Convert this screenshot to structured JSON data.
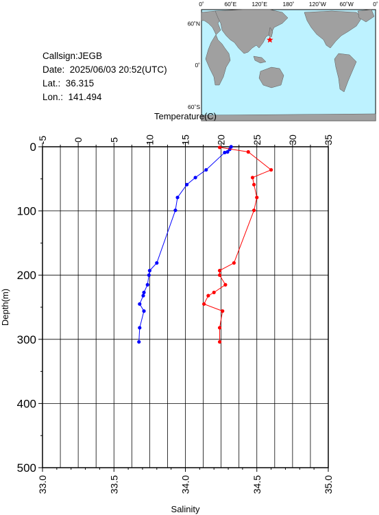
{
  "info": {
    "callsign": "Callsign:JEGB",
    "date_label": "Date:",
    "date_value": "2025/06/03 20:52(UTC)",
    "lat_label": "Lat.:",
    "lat_value": "36.315",
    "lon_label": "Lon.:",
    "lon_value": "141.494"
  },
  "map": {
    "top_labels": [
      "0˚",
      "60˚E",
      "120˚E",
      "180˚",
      "120˚W",
      "60˚W",
      "0˚"
    ],
    "left_labels": [
      "60˚N",
      "0˚",
      "60˚S"
    ],
    "ocean_color": "#bdf2ff",
    "land_color": "#a0a0a0",
    "marker_color": "#ff0000",
    "station": {
      "lat": 36.315,
      "lon": 141.494
    }
  },
  "chart_data": {
    "type": "line",
    "temperature_axis": {
      "label": "Temperature(C)",
      "range": [
        -5,
        35
      ],
      "ticks": [
        -5,
        0,
        5,
        10,
        15,
        20,
        25,
        30,
        35
      ]
    },
    "salinity_axis": {
      "label": "Salinity",
      "range": [
        33.0,
        35.0
      ],
      "ticks": [
        "33.0",
        "33.5",
        "34.0",
        "34.5",
        "35.0"
      ]
    },
    "depth_axis": {
      "label": "Depth(m)",
      "range": [
        0,
        500
      ],
      "ticks": [
        0,
        100,
        200,
        300,
        400,
        500
      ],
      "inverted": true
    },
    "grid": true,
    "series": [
      {
        "axis": "temperature",
        "color": "#0000ff",
        "points": [
          {
            "value": 21.4,
            "depth": 0
          },
          {
            "value": 21.2,
            "depth": 4
          },
          {
            "value": 20.9,
            "depth": 8
          },
          {
            "value": 20.5,
            "depth": 9
          },
          {
            "value": 17.9,
            "depth": 36
          },
          {
            "value": 16.4,
            "depth": 48
          },
          {
            "value": 15.2,
            "depth": 59
          },
          {
            "value": 13.9,
            "depth": 79
          },
          {
            "value": 13.6,
            "depth": 99
          },
          {
            "value": 11.0,
            "depth": 181
          },
          {
            "value": 10.0,
            "depth": 193
          },
          {
            "value": 9.9,
            "depth": 200
          },
          {
            "value": 9.7,
            "depth": 215
          },
          {
            "value": 9.2,
            "depth": 227
          },
          {
            "value": 9.1,
            "depth": 232
          },
          {
            "value": 8.6,
            "depth": 245
          },
          {
            "value": 9.2,
            "depth": 256
          },
          {
            "value": 8.6,
            "depth": 282
          },
          {
            "value": 8.5,
            "depth": 304
          }
        ]
      },
      {
        "axis": "salinity",
        "color": "#ff0000",
        "points": [
          {
            "value": 34.24,
            "depth": 1
          },
          {
            "value": 34.44,
            "depth": 8
          },
          {
            "value": 34.6,
            "depth": 36
          },
          {
            "value": 34.47,
            "depth": 48
          },
          {
            "value": 34.48,
            "depth": 59
          },
          {
            "value": 34.5,
            "depth": 79
          },
          {
            "value": 34.48,
            "depth": 99
          },
          {
            "value": 34.34,
            "depth": 181
          },
          {
            "value": 34.24,
            "depth": 193
          },
          {
            "value": 34.24,
            "depth": 200
          },
          {
            "value": 34.28,
            "depth": 215
          },
          {
            "value": 34.2,
            "depth": 227
          },
          {
            "value": 34.16,
            "depth": 232
          },
          {
            "value": 34.13,
            "depth": 245
          },
          {
            "value": 34.26,
            "depth": 256
          },
          {
            "value": 34.24,
            "depth": 282
          },
          {
            "value": 34.24,
            "depth": 304
          }
        ]
      }
    ]
  }
}
